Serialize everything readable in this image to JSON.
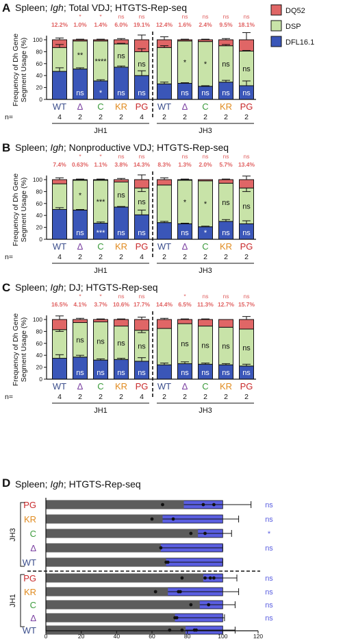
{
  "colors": {
    "DQ52": "#e06666",
    "DSP": "#c8e3a8",
    "DFL16.1": "#3a56b8",
    "bar_d_dark": "#5c5c5c",
    "bar_d_light": "#5a5ee0",
    "WT": "#3b4e8c",
    "Δ": "#7a3fa0",
    "C": "#3a9a3a",
    "KR": "#e08a1e",
    "PG": "#c8282a",
    "pct_red": "#e06060",
    "ns_blue": "#5a5ee0"
  },
  "legend": [
    "DQ52",
    "DSP",
    "DFL16.1"
  ],
  "n_label": "n=",
  "chart_data": [
    {
      "panel": "A",
      "type": "bar",
      "stacked": true,
      "title_parts": [
        "Spleen; ",
        "Igh",
        "; Total VDJ; HTGTS-Rep-seq"
      ],
      "ylabel": [
        "Frequency of Dh Gene",
        "Segment Usage (%)"
      ],
      "ylim": [
        0,
        100
      ],
      "yticks": [
        "0",
        "20",
        "40",
        "60",
        "80",
        "100"
      ],
      "categories": [
        "WT",
        "Δ",
        "C",
        "KR",
        "PG",
        "WT",
        "Δ",
        "C",
        "KR",
        "PG"
      ],
      "n": [
        "4",
        "2",
        "2",
        "2",
        "4",
        "2",
        "2",
        "2",
        "2",
        "2"
      ],
      "groups": [
        "JH1",
        "JH3"
      ],
      "top_sig": [
        "",
        "*",
        "*",
        "ns",
        "ns",
        "",
        "ns",
        "ns",
        "ns",
        "ns"
      ],
      "dq52_pct": [
        "12.2%",
        "1.0%",
        "1.4%",
        "6.0%",
        "19.1%",
        "12.4%",
        "1.6%",
        "2.4%",
        "9.5%",
        "18.1%"
      ],
      "series": [
        {
          "name": "DFL16.1",
          "values": [
            47,
            51,
            31,
            54,
            40,
            26,
            27,
            22,
            29,
            23
          ]
        },
        {
          "name": "DSP",
          "values": [
            40,
            47,
            67,
            39,
            40,
            61,
            71,
            75,
            61,
            58
          ]
        },
        {
          "name": "DQ52",
          "values": [
            13,
            2,
            2,
            7,
            20,
            13,
            2,
            3,
            10,
            19
          ]
        }
      ],
      "err_top": [
        103,
        101,
        101,
        102,
        108,
        105,
        101,
        101,
        102,
        112
      ],
      "err_mid": [
        92,
        0,
        0,
        94,
        85,
        90,
        0,
        0,
        92,
        82
      ],
      "err_low": [
        53,
        53,
        33,
        56,
        48,
        29,
        28,
        23,
        32,
        31
      ],
      "dsp_sig": [
        "",
        "**",
        "****",
        "ns",
        "ns",
        "",
        "*",
        "*",
        "ns",
        "ns"
      ],
      "dfl_sig": [
        "",
        "ns",
        "*",
        "ns",
        "ns",
        "",
        "ns",
        "ns",
        "ns",
        "ns"
      ]
    },
    {
      "panel": "B",
      "type": "bar",
      "stacked": true,
      "title_parts": [
        "Spleen; ",
        "Igh",
        "; Nonproductive VDJ; HTGTS-Rep-seq"
      ],
      "ylabel": [
        "Frequency of Dh Gene",
        "Segment Usage (%)"
      ],
      "ylim": [
        0,
        100
      ],
      "yticks": [
        "0",
        "20",
        "40",
        "60",
        "80",
        "100"
      ],
      "categories": [
        "WT",
        "Δ",
        "C",
        "KR",
        "PG",
        "WT",
        "Δ",
        "C",
        "KR",
        "PG"
      ],
      "n": [
        "4",
        "2",
        "2",
        "2",
        "4",
        "2",
        "2",
        "2",
        "2",
        "2"
      ],
      "groups": [
        "JH1",
        "JH3"
      ],
      "top_sig": [
        "",
        "*",
        "*",
        "ns",
        "ns",
        "",
        "ns",
        "ns",
        "ns",
        "ns"
      ],
      "dq52_pct": [
        "7.4%",
        "0.63%",
        "1.1%",
        "3.8%",
        "14.3%",
        "8.3%",
        "1.3%",
        "2.0%",
        "5.7%",
        "13.4%"
      ],
      "series": [
        {
          "name": "DFL16.1",
          "values": [
            50,
            49,
            27,
            54,
            41,
            28,
            26,
            21,
            30,
            26
          ]
        },
        {
          "name": "DSP",
          "values": [
            43,
            50,
            72,
            42,
            45,
            63,
            73,
            77,
            64,
            60
          ]
        },
        {
          "name": "DQ52",
          "values": [
            7,
            1,
            1,
            4,
            14,
            9,
            1,
            2,
            6,
            14
          ]
        }
      ],
      "err_top": [
        103,
        101,
        101,
        102,
        108,
        103,
        101,
        100,
        101,
        106
      ],
      "err_mid": [
        0,
        0,
        0,
        0,
        80,
        0,
        0,
        0,
        0,
        80
      ],
      "err_low": [
        53,
        50,
        29,
        55,
        49,
        30,
        27,
        22,
        33,
        31
      ],
      "dsp_sig": [
        "",
        "*",
        "***",
        "ns",
        "ns",
        "",
        "*",
        "*",
        "ns",
        "ns"
      ],
      "dfl_sig": [
        "",
        "ns",
        "***",
        "ns",
        "ns",
        "",
        "ns",
        "*",
        "ns",
        "ns"
      ]
    },
    {
      "panel": "C",
      "type": "bar",
      "stacked": true,
      "title_parts": [
        "Spleen; ",
        "Igh",
        "; DJ; HTGTS-Rep-seq"
      ],
      "ylabel": [
        "Frequency of Dh Gene",
        "Segment Usage (%)"
      ],
      "ylim": [
        0,
        100
      ],
      "yticks": [
        "0",
        "20",
        "40",
        "60",
        "80",
        "100"
      ],
      "categories": [
        "WT",
        "Δ",
        "C",
        "KR",
        "PG",
        "WT",
        "Δ",
        "C",
        "KR",
        "PG"
      ],
      "n": [
        "4",
        "2",
        "2",
        "2",
        "4",
        "2",
        "2",
        "2",
        "2",
        "2"
      ],
      "groups": [
        "JH1",
        "JH3"
      ],
      "top_sig": [
        "",
        "*",
        "*",
        "ns",
        "ns",
        "",
        "*",
        "ns",
        "ns",
        "ns"
      ],
      "dq52_pct": [
        "16.5%",
        "4.1%",
        "3.7%",
        "10.6%",
        "17.7%",
        "14.4%",
        "6.5%",
        "11.3%",
        "12.7%",
        "15.7%"
      ],
      "series": [
        {
          "name": "DFL16.1",
          "values": [
            35,
            37,
            32,
            33,
            30,
            24,
            26,
            25,
            24,
            22
          ]
        },
        {
          "name": "DSP",
          "values": [
            48,
            58,
            64,
            56,
            52,
            61,
            67,
            64,
            63,
            62
          ]
        },
        {
          "name": "DQ52",
          "values": [
            17,
            5,
            4,
            11,
            18,
            15,
            7,
            11,
            13,
            16
          ]
        }
      ],
      "err_top": [
        106,
        102,
        101,
        101,
        104,
        102,
        101,
        101,
        100,
        105
      ],
      "err_mid": [
        80,
        0,
        0,
        0,
        78,
        0,
        0,
        0,
        0,
        0
      ],
      "err_low": [
        41,
        40,
        34,
        35,
        36,
        27,
        29,
        27,
        26,
        25
      ],
      "dsp_sig": [
        "",
        "ns",
        "ns",
        "ns",
        "ns",
        "",
        "ns",
        "ns",
        "ns",
        "ns"
      ],
      "dfl_sig": [
        "",
        "ns",
        "ns",
        "ns",
        "ns",
        "",
        "ns",
        "ns",
        "ns",
        "ns"
      ]
    },
    {
      "panel": "D",
      "type": "bar",
      "orientation": "horizontal",
      "stacked": true,
      "title_parts": [
        "Spleen; ",
        "Igh",
        "; HTGTS-Rep-seq"
      ],
      "xlim": [
        0,
        120
      ],
      "xticks": [
        "0",
        "20",
        "40",
        "60",
        "80",
        "100",
        "120"
      ],
      "groups": [
        "JH3",
        "JH1"
      ],
      "rows": [
        {
          "label": "PG",
          "group": "JH3",
          "dark": 78,
          "err": 116,
          "points": [
            66,
            89,
            95
          ],
          "sig": "ns"
        },
        {
          "label": "KR",
          "group": "JH3",
          "dark": 66,
          "err": 109,
          "points": [
            60,
            72
          ],
          "sig": "ns"
        },
        {
          "label": "C",
          "group": "JH3",
          "dark": 86,
          "err": 105,
          "points": [
            82,
            90
          ],
          "sig": "*"
        },
        {
          "label": "Δ",
          "group": "JH3",
          "dark": 65,
          "err": 100,
          "points": [
            65
          ],
          "sig": "ns"
        },
        {
          "label": "WT",
          "group": "JH3",
          "dark": 68,
          "err": 100,
          "points": [
            68,
            69
          ],
          "sig": ""
        },
        {
          "label": "PG",
          "group": "JH1",
          "dark": 89,
          "err": 108,
          "points": [
            77,
            90,
            93,
            95
          ],
          "sig": "ns"
        },
        {
          "label": "KR",
          "group": "JH1",
          "dark": 69,
          "err": 109,
          "points": [
            62,
            75,
            76
          ],
          "sig": "ns"
        },
        {
          "label": "C",
          "group": "JH1",
          "dark": 87,
          "err": 107,
          "points": [
            82,
            92
          ],
          "sig": "ns"
        },
        {
          "label": "Δ",
          "group": "JH1",
          "dark": 73,
          "err": 101,
          "points": [
            73,
            74
          ],
          "sig": "ns"
        },
        {
          "label": "WT",
          "group": "JH1",
          "dark": 79,
          "err": 107,
          "points": [
            70,
            77,
            84,
            85
          ],
          "sig": ""
        }
      ]
    }
  ]
}
